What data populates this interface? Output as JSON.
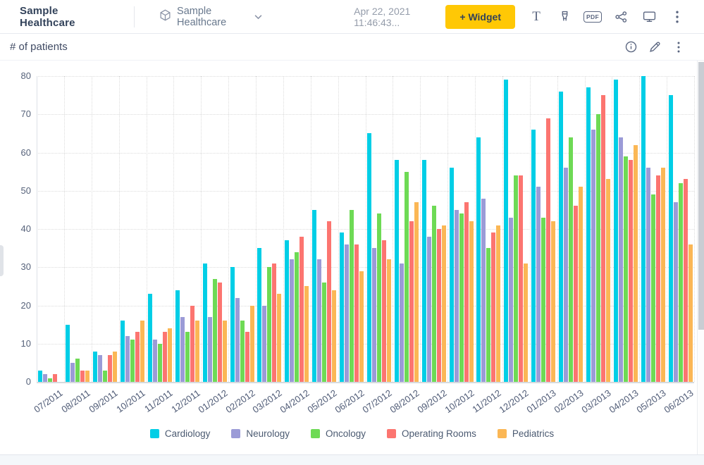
{
  "header": {
    "app_title": "Sample Healthcare",
    "dashboard_name": "Sample Healthcare",
    "timestamp": "Apr 22, 2021 11:46:43...",
    "widget_button_label": "+ Widget",
    "text_tool_glyph": "T",
    "pdf_label": "PDF",
    "icons": [
      "cube-icon",
      "chevron-down-icon",
      "text-tool-icon",
      "brush-icon",
      "pdf-export-icon",
      "share-icon",
      "presentation-mode-icon",
      "more-options-icon"
    ]
  },
  "widget": {
    "title": "# of patients",
    "icons": [
      "info-icon",
      "edit-pencil-icon",
      "more-options-icon"
    ]
  },
  "colors": {
    "accent_yellow": "#FFC805",
    "cardiology": "#00CEE6",
    "neurology": "#9B9BD7",
    "oncology": "#6EDA55",
    "operating_rooms": "#FC7570",
    "pediatrics": "#FBB755"
  },
  "chart_data": {
    "type": "bar",
    "title": "# of patients",
    "xlabel": "",
    "ylabel": "",
    "ylim": [
      0,
      80
    ],
    "ytick_interval": 10,
    "grid": "dotted",
    "legend_position": "bottom",
    "categories": [
      "07/2011",
      "08/2011",
      "09/2011",
      "10/2011",
      "11/2011",
      "12/2011",
      "01/2012",
      "02/2012",
      "03/2012",
      "04/2012",
      "05/2012",
      "06/2012",
      "07/2012",
      "08/2012",
      "09/2012",
      "10/2012",
      "11/2012",
      "12/2012",
      "01/2013",
      "02/2013",
      "03/2013",
      "04/2013",
      "05/2013",
      "06/2013"
    ],
    "series": [
      {
        "name": "Cardiology",
        "color": "#00CEE6",
        "values": [
          3,
          15,
          8,
          16,
          23,
          24,
          31,
          30,
          35,
          37,
          45,
          39,
          65,
          58,
          58,
          56,
          64,
          79,
          66,
          76,
          77,
          79,
          80,
          75
        ]
      },
      {
        "name": "Neurology",
        "color": "#9B9BD7",
        "values": [
          2,
          5,
          7,
          12,
          11,
          17,
          17,
          22,
          20,
          32,
          32,
          36,
          35,
          31,
          38,
          45,
          48,
          43,
          51,
          56,
          66,
          64,
          56,
          47
        ]
      },
      {
        "name": "Oncology",
        "color": "#6EDA55",
        "values": [
          1,
          6,
          3,
          11,
          10,
          13,
          27,
          16,
          30,
          34,
          26,
          45,
          44,
          55,
          46,
          44,
          35,
          54,
          43,
          64,
          70,
          59,
          49,
          52
        ]
      },
      {
        "name": "Operating Rooms",
        "color": "#FC7570",
        "values": [
          2,
          3,
          7,
          13,
          13,
          20,
          26,
          13,
          31,
          38,
          42,
          36,
          37,
          42,
          40,
          47,
          39,
          54,
          69,
          46,
          75,
          58,
          54,
          53
        ]
      },
      {
        "name": "Pediatrics",
        "color": "#FBB755",
        "values": [
          0,
          3,
          8,
          16,
          14,
          16,
          16,
          20,
          23,
          25,
          24,
          29,
          32,
          47,
          41,
          42,
          41,
          31,
          42,
          51,
          53,
          62,
          56,
          36
        ]
      }
    ]
  }
}
